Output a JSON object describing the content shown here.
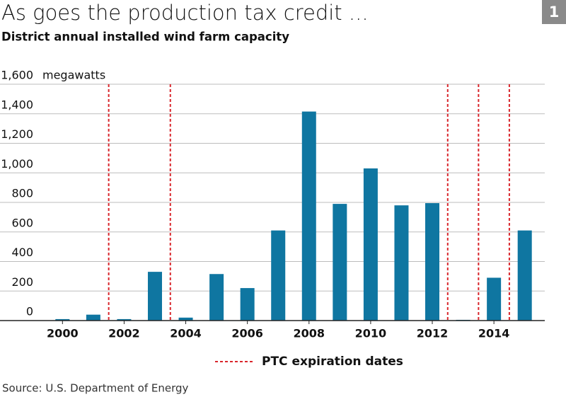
{
  "chart_data": {
    "type": "bar",
    "title": "As goes the production tax credit ...",
    "subtitle": "District annual installed wind farm capacity",
    "badge": "1",
    "y_label": "megawatts",
    "source": "Source: U.S. Department of Energy",
    "x": [
      2000,
      2001,
      2002,
      2003,
      2004,
      2005,
      2006,
      2007,
      2008,
      2009,
      2010,
      2011,
      2012,
      2013,
      2014,
      2015
    ],
    "values": [
      10,
      40,
      10,
      330,
      20,
      315,
      220,
      610,
      1415,
      790,
      1030,
      780,
      795,
      5,
      290,
      610
    ],
    "color": "#0f76a1",
    "xlim": [
      1999.35,
      2015.65
    ],
    "xticks": [
      2000,
      2002,
      2004,
      2006,
      2008,
      2010,
      2012,
      2014
    ],
    "ylim": [
      0,
      1600
    ],
    "yticks": [
      0,
      200,
      400,
      600,
      800,
      {
        "value": 1000,
        "label": "1,000"
      },
      {
        "value": 1200,
        "label": "1,200"
      },
      {
        "value": 1400,
        "label": "1,400"
      },
      {
        "value": 1600,
        "label": "1,600"
      }
    ],
    "grid": true,
    "expirations": {
      "name": "PTC expiration dates",
      "color": "#d9262c",
      "x": [
        2001.5,
        2003.5,
        2012.5,
        2013.5,
        2014.5
      ]
    }
  }
}
